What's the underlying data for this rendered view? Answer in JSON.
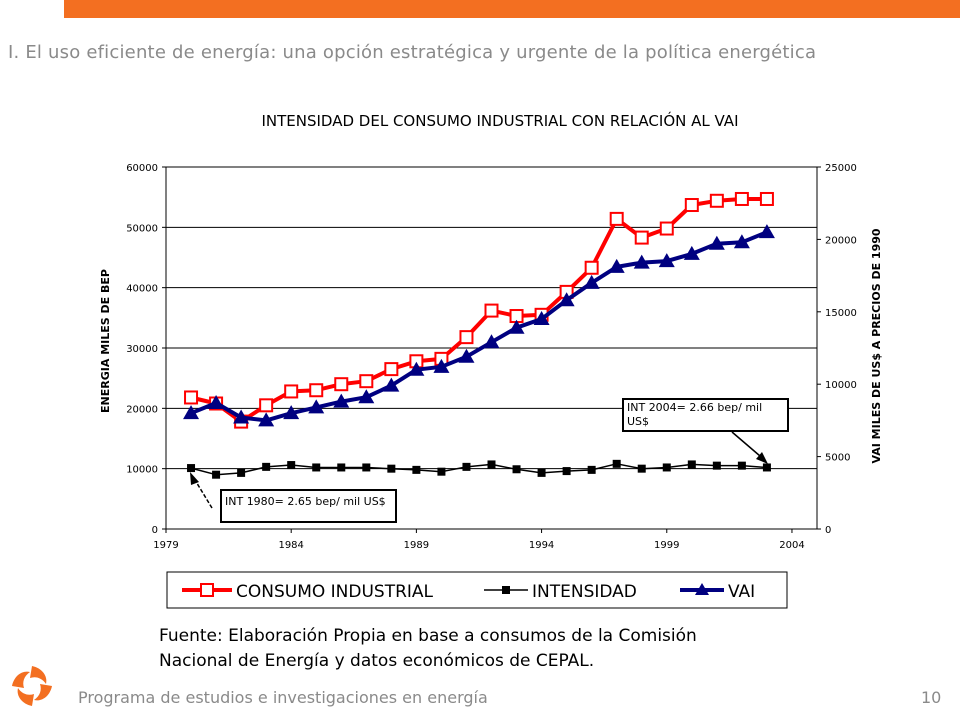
{
  "slide": {
    "title": "I. El uso eficiente de energía: una opción estratégica y urgente de la política energética",
    "source_line1": "Fuente: Elaboración Propia en base a consumos de la Comisión",
    "source_line2": "Nacional de Energía y datos económicos de CEPAL.",
    "footer": "Programa de estudios e investigaciones en energía",
    "page_number": "10"
  },
  "colors": {
    "accent": "#f36f21",
    "consumo": "#ff0000",
    "vai": "#000080",
    "intensidad": "#000000"
  },
  "chart_data": {
    "type": "line",
    "title": "INTENSIDAD DEL CONSUMO INDUSTRIAL CON RELACIÓN AL VAI",
    "ylabel": "ENERGIA MILES DE BEP",
    "y2label": "VAI MILES DE US$ A PRECIOS DE 1990",
    "xlim": [
      1979,
      2005
    ],
    "ylim": [
      0,
      60000
    ],
    "y2lim": [
      0,
      25000
    ],
    "x_ticks": [
      "1979",
      "1984",
      "1989",
      "1994",
      "1999",
      "2004"
    ],
    "y_ticks": [
      "0",
      "10000",
      "20000",
      "30000",
      "40000",
      "50000",
      "60000"
    ],
    "y2_ticks": [
      "0",
      "5000",
      "10000",
      "15000",
      "20000",
      "25000"
    ],
    "grid": true,
    "legend_position": "bottom",
    "x": [
      1980,
      1981,
      1982,
      1983,
      1984,
      1985,
      1986,
      1987,
      1988,
      1989,
      1990,
      1991,
      1992,
      1993,
      1994,
      1995,
      1996,
      1997,
      1998,
      1999,
      2000,
      2001,
      2002,
      2003
    ],
    "series": [
      {
        "name": "CONSUMO INDUSTRIAL",
        "axis": "left",
        "values": [
          21800,
          20800,
          17800,
          20500,
          22800,
          23000,
          24000,
          24500,
          26500,
          27800,
          28200,
          31800,
          36200,
          35300,
          35500,
          39300,
          43300,
          51400,
          48300,
          49800,
          53700,
          54400,
          54700,
          54700
        ]
      },
      {
        "name": "INTENSIDAD",
        "axis": "left",
        "values": [
          10100,
          9000,
          9300,
          10300,
          10600,
          10200,
          10200,
          10200,
          10000,
          9800,
          9500,
          10300,
          10700,
          9900,
          9300,
          9600,
          9800,
          10800,
          10000,
          10200,
          10700,
          10500,
          10500,
          10200
        ]
      },
      {
        "name": "VAI",
        "axis": "right",
        "values": [
          8000,
          8700,
          7700,
          7500,
          8000,
          8400,
          8800,
          9100,
          9900,
          11000,
          11200,
          11900,
          12900,
          13900,
          14500,
          15800,
          17000,
          18100,
          18400,
          18500,
          19000,
          19700,
          19800,
          20500
        ]
      }
    ],
    "annotations": [
      {
        "text": "INT 1980= 2.65 bep/ mil US$"
      },
      {
        "text": "INT 2004= 2.66 bep/ mil",
        "text2": "US$"
      }
    ]
  }
}
